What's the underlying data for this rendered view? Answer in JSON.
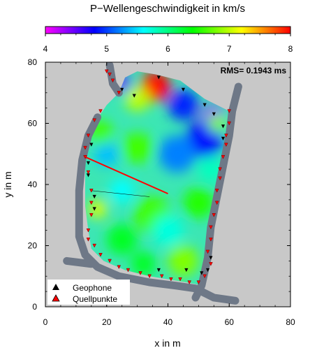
{
  "chart_data": {
    "type": "heatmap",
    "title": "P−Wellengeschwindigkeit in km/s",
    "xlabel": "x in m",
    "ylabel": "y in m",
    "xlim": [
      0,
      80
    ],
    "ylim": [
      0,
      80
    ],
    "x_ticks": [
      "0",
      "20",
      "40",
      "60",
      "80"
    ],
    "y_ticks": [
      "0",
      "20",
      "40",
      "60",
      "80"
    ],
    "colorbar": {
      "min": 4,
      "max": 8,
      "ticks": [
        "4",
        "5",
        "6",
        "7",
        "8"
      ],
      "colors": [
        "#ff00ff",
        "#0000ff",
        "#00ffff",
        "#00ff00",
        "#ffff00",
        "#ff0000"
      ]
    },
    "annotation": "RMS= 0.1943 ms",
    "legend": {
      "placement": "bottom-left",
      "entries": [
        {
          "label": "Geophone",
          "marker": "triangle-up",
          "color": "#000000"
        },
        {
          "label": "Quellpunkte",
          "marker": "triangle-up",
          "color": "#ff0000"
        }
      ]
    },
    "grid": false,
    "background_color": "#c8c8c8",
    "wall_color": "#6e7887",
    "tomogram_outline": [
      [
        14,
        56
      ],
      [
        16,
        60
      ],
      [
        20,
        66
      ],
      [
        24,
        70
      ],
      [
        26,
        75
      ],
      [
        30,
        77
      ],
      [
        36,
        76
      ],
      [
        44,
        74
      ],
      [
        52,
        68
      ],
      [
        60,
        64
      ],
      [
        59,
        55
      ],
      [
        57,
        45
      ],
      [
        55,
        35
      ],
      [
        53,
        25
      ],
      [
        52,
        15
      ],
      [
        51,
        7
      ],
      [
        46,
        8
      ],
      [
        40,
        9
      ],
      [
        34,
        10
      ],
      [
        26,
        12
      ],
      [
        19,
        15
      ],
      [
        15,
        19
      ],
      [
        14,
        25
      ],
      [
        13,
        33
      ],
      [
        13,
        40
      ],
      [
        13,
        48
      ]
    ],
    "velocity_cells": [
      {
        "x": 36,
        "y": 72,
        "v": 8.0,
        "r": 5
      },
      {
        "x": 30,
        "y": 68,
        "v": 7.0,
        "r": 4
      },
      {
        "x": 25,
        "y": 73,
        "v": 4.5,
        "r": 3
      },
      {
        "x": 45,
        "y": 66,
        "v": 4.9,
        "r": 5
      },
      {
        "x": 55,
        "y": 62,
        "v": 4.3,
        "r": 4
      },
      {
        "x": 52,
        "y": 55,
        "v": 4.8,
        "r": 6
      },
      {
        "x": 43,
        "y": 50,
        "v": 5.2,
        "r": 6
      },
      {
        "x": 54,
        "y": 45,
        "v": 5.8,
        "r": 4
      },
      {
        "x": 30,
        "y": 52,
        "v": 6.6,
        "r": 5
      },
      {
        "x": 20,
        "y": 50,
        "v": 5.4,
        "r": 4
      },
      {
        "x": 18,
        "y": 57,
        "v": 6.6,
        "r": 4
      },
      {
        "x": 17,
        "y": 32,
        "v": 7.1,
        "r": 3
      },
      {
        "x": 25,
        "y": 38,
        "v": 5.6,
        "r": 4
      },
      {
        "x": 35,
        "y": 30,
        "v": 6.6,
        "r": 6
      },
      {
        "x": 50,
        "y": 34,
        "v": 6.5,
        "r": 5
      },
      {
        "x": 40,
        "y": 25,
        "v": 5.7,
        "r": 5
      },
      {
        "x": 25,
        "y": 22,
        "v": 6.3,
        "r": 5
      },
      {
        "x": 45,
        "y": 15,
        "v": 6.8,
        "r": 5
      },
      {
        "x": 32,
        "y": 14,
        "v": 6.3,
        "r": 4
      },
      {
        "x": 56,
        "y": 60,
        "v": 6.8,
        "r": 3
      }
    ],
    "walls": [
      {
        "points": [
          [
            21,
            79
          ],
          [
            22,
            73
          ],
          [
            24,
            70
          ]
        ]
      },
      {
        "points": [
          [
            63,
            72
          ],
          [
            61,
            64
          ],
          [
            60,
            56
          ],
          [
            58,
            46
          ],
          [
            56,
            36
          ],
          [
            54,
            26
          ],
          [
            53,
            16
          ],
          [
            51,
            7
          ],
          [
            49,
            3
          ]
        ]
      },
      {
        "points": [
          [
            17,
            62
          ],
          [
            14,
            56
          ],
          [
            12,
            48
          ],
          [
            11,
            38
          ],
          [
            11,
            30
          ],
          [
            11,
            23
          ],
          [
            13,
            17
          ],
          [
            17,
            13
          ],
          [
            24,
            10
          ],
          [
            34,
            8
          ],
          [
            42,
            7
          ],
          [
            49,
            6
          ],
          [
            55,
            3
          ],
          [
            62,
            2
          ]
        ]
      },
      {
        "points": [
          [
            7,
            15
          ],
          [
            15,
            14
          ]
        ]
      }
    ],
    "geophones": [
      [
        25,
        71
      ],
      [
        29,
        69
      ],
      [
        37,
        75
      ],
      [
        45,
        71
      ],
      [
        52,
        66
      ],
      [
        55,
        63
      ],
      [
        58,
        59
      ],
      [
        58,
        55
      ],
      [
        15,
        53
      ],
      [
        14,
        47
      ],
      [
        14,
        43
      ],
      [
        16,
        36
      ],
      [
        16,
        32
      ],
      [
        37,
        12
      ],
      [
        46,
        12
      ],
      [
        51,
        11
      ],
      [
        53,
        12
      ],
      [
        54,
        16
      ]
    ],
    "quellpunkte": [
      [
        20,
        77
      ],
      [
        21,
        76
      ],
      [
        22,
        74
      ],
      [
        24,
        70
      ],
      [
        18,
        64
      ],
      [
        16,
        61
      ],
      [
        14,
        56
      ],
      [
        13,
        52
      ],
      [
        13,
        49
      ],
      [
        14,
        44
      ],
      [
        15,
        38
      ],
      [
        15,
        34
      ],
      [
        15,
        30
      ],
      [
        14,
        25
      ],
      [
        14,
        22
      ],
      [
        16,
        20
      ],
      [
        18,
        17
      ],
      [
        21,
        15
      ],
      [
        24,
        13
      ],
      [
        27,
        12
      ],
      [
        31,
        11
      ],
      [
        34,
        10
      ],
      [
        38,
        10
      ],
      [
        41,
        9
      ],
      [
        44,
        9
      ],
      [
        47,
        8
      ],
      [
        50,
        8
      ],
      [
        52,
        10
      ],
      [
        54,
        14
      ],
      [
        53,
        18
      ],
      [
        54,
        22
      ],
      [
        54,
        26
      ],
      [
        55,
        30
      ],
      [
        56,
        34
      ],
      [
        56,
        38
      ],
      [
        57,
        42
      ],
      [
        57,
        45
      ],
      [
        58,
        49
      ],
      [
        59,
        53
      ],
      [
        59,
        56
      ],
      [
        60,
        60
      ],
      [
        60,
        64
      ]
    ],
    "ray_lines": [
      {
        "from": [
          13,
          49
        ],
        "to": [
          40,
          37
        ],
        "color": "#ff0000",
        "width": 2
      },
      {
        "from": [
          15,
          38
        ],
        "to": [
          34,
          36
        ],
        "color": "#000000",
        "width": 0.6
      }
    ]
  }
}
